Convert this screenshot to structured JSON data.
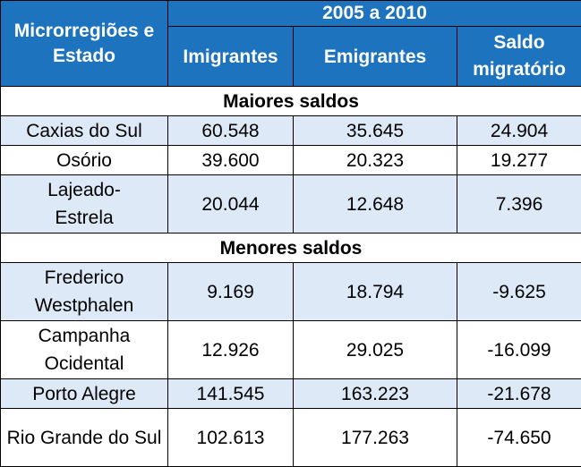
{
  "header": {
    "region_col": "Microrregiões e Estado",
    "period": "2005 a 2010",
    "imigrantes": "Imigrantes",
    "emigrantes": "Emigrantes",
    "saldo": "Saldo migratório"
  },
  "sections": {
    "maiores": "Maiores saldos",
    "menores": "Menores saldos"
  },
  "rows": [
    {
      "name": "Caxias do Sul",
      "imigrantes": "60.548",
      "emigrantes": "35.645",
      "saldo": "24.904"
    },
    {
      "name": "Osório",
      "imigrantes": "39.600",
      "emigrantes": "20.323",
      "saldo": "19.277"
    },
    {
      "name": "Lajeado-Estrela",
      "imigrantes": "20.044",
      "emigrantes": "12.648",
      "saldo": "7.396"
    },
    {
      "name": "Frederico Westphalen",
      "imigrantes": "9.169",
      "emigrantes": "18.794",
      "saldo": "-9.625"
    },
    {
      "name": "Campanha Ocidental",
      "imigrantes": "12.926",
      "emigrantes": "29.025",
      "saldo": "-16.099"
    },
    {
      "name": "Porto Alegre",
      "imigrantes": "141.545",
      "emigrantes": "163.223",
      "saldo": "-21.678"
    },
    {
      "name": "Rio Grande do Sul",
      "imigrantes": "102.613",
      "emigrantes": "177.263",
      "saldo": "-74.650"
    }
  ]
}
